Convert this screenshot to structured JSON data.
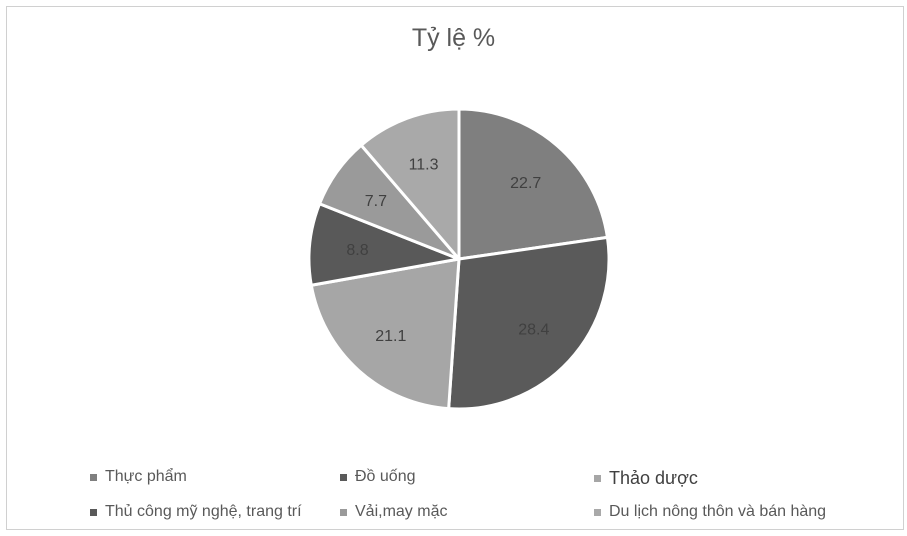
{
  "chart_data": {
    "type": "pie",
    "title": "Tỷ lệ %",
    "categories": [
      "Thực phẩm",
      "Đồ uống",
      "Thảo dược",
      "Thủ công mỹ nghệ, trang trí",
      "Vải,may mặc",
      "Du lịch nông thôn và bán hàng"
    ],
    "values": [
      22.7,
      28.4,
      21.1,
      8.8,
      7.7,
      11.3
    ],
    "data_labels": [
      "22.7",
      "28.4",
      "21.1",
      "8.8",
      "7.7",
      "11.3"
    ],
    "colors": [
      "#7f7f7f",
      "#5a5a5a",
      "#a6a6a6",
      "#595959",
      "#9a9a9a",
      "#a9a9a9"
    ],
    "legend_position": "bottom",
    "slice_border_color": "#ffffff"
  }
}
